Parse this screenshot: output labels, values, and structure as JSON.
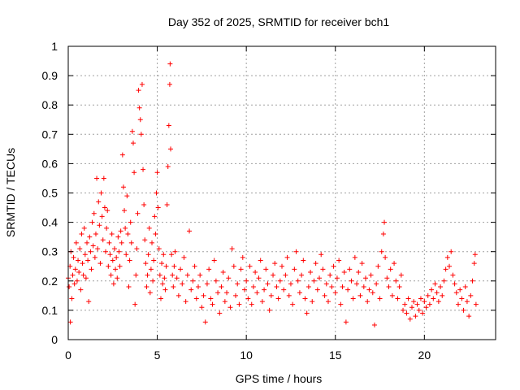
{
  "chart_data": {
    "type": "scatter",
    "title": "Day 352 of 2025, SRMTID for receiver bch1",
    "xlabel": "GPS time / hours",
    "ylabel": "SRMTID / TECUs",
    "xlim": [
      0,
      24
    ],
    "ylim": [
      0,
      1
    ],
    "x_ticks": [
      0,
      5,
      10,
      15,
      20
    ],
    "x_tick_labels": [
      "0",
      "5",
      "10",
      "15",
      "20"
    ],
    "y_ticks": [
      0,
      0.1,
      0.2,
      0.3,
      0.4,
      0.5,
      0.6,
      0.7,
      0.8,
      0.9,
      1
    ],
    "y_tick_labels": [
      "0",
      "0.1",
      "0.2",
      "0.3",
      "0.4",
      "0.5",
      "0.6",
      "0.7",
      "0.8",
      "0.9",
      "1"
    ],
    "grid": true,
    "marker": "+",
    "series": [
      {
        "name": "SRMTID",
        "color": "#ff0000",
        "points": [
          [
            0.0,
            0.21
          ],
          [
            0.05,
            0.18
          ],
          [
            0.1,
            0.25
          ],
          [
            0.12,
            0.06
          ],
          [
            0.15,
            0.3
          ],
          [
            0.2,
            0.14
          ],
          [
            0.25,
            0.22
          ],
          [
            0.3,
            0.28
          ],
          [
            0.35,
            0.19
          ],
          [
            0.4,
            0.24
          ],
          [
            0.45,
            0.33
          ],
          [
            0.5,
            0.2
          ],
          [
            0.55,
            0.27
          ],
          [
            0.6,
            0.23
          ],
          [
            0.65,
            0.31
          ],
          [
            0.7,
            0.17
          ],
          [
            0.75,
            0.36
          ],
          [
            0.8,
            0.26
          ],
          [
            0.85,
            0.22
          ],
          [
            0.9,
            0.38
          ],
          [
            0.95,
            0.29
          ],
          [
            1.0,
            0.21
          ],
          [
            1.05,
            0.33
          ],
          [
            1.1,
            0.27
          ],
          [
            1.15,
            0.13
          ],
          [
            1.2,
            0.35
          ],
          [
            1.25,
            0.3
          ],
          [
            1.3,
            0.24
          ],
          [
            1.35,
            0.4
          ],
          [
            1.4,
            0.32
          ],
          [
            1.45,
            0.43
          ],
          [
            1.5,
            0.28
          ],
          [
            1.55,
            0.36
          ],
          [
            1.6,
            0.55
          ],
          [
            1.65,
            0.31
          ],
          [
            1.7,
            0.47
          ],
          [
            1.75,
            0.39
          ],
          [
            1.8,
            0.26
          ],
          [
            1.85,
            0.5
          ],
          [
            1.9,
            0.42
          ],
          [
            1.95,
            0.34
          ],
          [
            2.0,
            0.55
          ],
          [
            2.05,
            0.45
          ],
          [
            2.1,
            0.3
          ],
          [
            2.15,
            0.38
          ],
          [
            2.2,
            0.44
          ],
          [
            2.25,
            0.25
          ],
          [
            2.3,
            0.33
          ],
          [
            2.35,
            0.29
          ],
          [
            2.4,
            0.22
          ],
          [
            2.45,
            0.36
          ],
          [
            2.5,
            0.27
          ],
          [
            2.55,
            0.19
          ],
          [
            2.6,
            0.31
          ],
          [
            2.65,
            0.24
          ],
          [
            2.7,
            0.28
          ],
          [
            2.75,
            0.21
          ],
          [
            2.8,
            0.35
          ],
          [
            2.85,
            0.3
          ],
          [
            2.9,
            0.25
          ],
          [
            2.95,
            0.37
          ],
          [
            3.0,
            0.33
          ],
          [
            3.05,
            0.63
          ],
          [
            3.1,
            0.52
          ],
          [
            3.15,
            0.44
          ],
          [
            3.2,
            0.38
          ],
          [
            3.25,
            0.29
          ],
          [
            3.3,
            0.49
          ],
          [
            3.35,
            0.36
          ],
          [
            3.4,
            0.18
          ],
          [
            3.45,
            0.27
          ],
          [
            3.5,
            0.4
          ],
          [
            3.55,
            0.33
          ],
          [
            3.6,
            0.71
          ],
          [
            3.65,
            0.67
          ],
          [
            3.7,
            0.57
          ],
          [
            3.75,
            0.12
          ],
          [
            3.8,
            0.22
          ],
          [
            3.85,
            0.31
          ],
          [
            3.9,
            0.43
          ],
          [
            3.95,
            0.85
          ],
          [
            4.0,
            0.79
          ],
          [
            4.05,
            0.75
          ],
          [
            4.1,
            0.7
          ],
          [
            4.15,
            0.87
          ],
          [
            4.2,
            0.58
          ],
          [
            4.25,
            0.46
          ],
          [
            4.3,
            0.34
          ],
          [
            4.35,
            0.26
          ],
          [
            4.4,
            0.18
          ],
          [
            4.45,
            0.22
          ],
          [
            4.5,
            0.29
          ],
          [
            4.55,
            0.38
          ],
          [
            4.6,
            0.16
          ],
          [
            4.65,
            0.24
          ],
          [
            4.7,
            0.33
          ],
          [
            4.75,
            0.2
          ],
          [
            4.8,
            0.27
          ],
          [
            4.85,
            0.42
          ],
          [
            4.9,
            0.36
          ],
          [
            4.95,
            0.5
          ],
          [
            5.0,
            0.57
          ],
          [
            5.05,
            0.45
          ],
          [
            5.1,
            0.31
          ],
          [
            5.15,
            0.22
          ],
          [
            5.2,
            0.14
          ],
          [
            5.25,
            0.26
          ],
          [
            5.3,
            0.19
          ],
          [
            5.35,
            0.29
          ],
          [
            5.4,
            0.21
          ],
          [
            5.45,
            0.17
          ],
          [
            5.5,
            0.25
          ],
          [
            5.55,
            0.46
          ],
          [
            5.6,
            0.59
          ],
          [
            5.65,
            0.73
          ],
          [
            5.7,
            0.87
          ],
          [
            5.72,
            0.94
          ],
          [
            5.75,
            0.65
          ],
          [
            5.8,
            0.29
          ],
          [
            5.85,
            0.22
          ],
          [
            5.9,
            0.18
          ],
          [
            5.95,
            0.25
          ],
          [
            6.0,
            0.3
          ],
          [
            6.1,
            0.21
          ],
          [
            6.2,
            0.15
          ],
          [
            6.3,
            0.24
          ],
          [
            6.4,
            0.19
          ],
          [
            6.5,
            0.28
          ],
          [
            6.6,
            0.13
          ],
          [
            6.7,
            0.22
          ],
          [
            6.8,
            0.37
          ],
          [
            6.9,
            0.17
          ],
          [
            7.0,
            0.2
          ],
          [
            7.1,
            0.25
          ],
          [
            7.2,
            0.14
          ],
          [
            7.3,
            0.18
          ],
          [
            7.4,
            0.22
          ],
          [
            7.5,
            0.11
          ],
          [
            7.6,
            0.15
          ],
          [
            7.7,
            0.06
          ],
          [
            7.8,
            0.19
          ],
          [
            7.9,
            0.24
          ],
          [
            8.0,
            0.14
          ],
          [
            8.1,
            0.12
          ],
          [
            8.2,
            0.27
          ],
          [
            8.3,
            0.2
          ],
          [
            8.4,
            0.16
          ],
          [
            8.5,
            0.09
          ],
          [
            8.6,
            0.18
          ],
          [
            8.7,
            0.23
          ],
          [
            8.8,
            0.13
          ],
          [
            8.9,
            0.16
          ],
          [
            9.0,
            0.21
          ],
          [
            9.1,
            0.11
          ],
          [
            9.2,
            0.31
          ],
          [
            9.3,
            0.25
          ],
          [
            9.4,
            0.15
          ],
          [
            9.5,
            0.19
          ],
          [
            9.6,
            0.12
          ],
          [
            9.7,
            0.24
          ],
          [
            9.8,
            0.28
          ],
          [
            9.9,
            0.17
          ],
          [
            10.0,
            0.2
          ],
          [
            10.1,
            0.14
          ],
          [
            10.2,
            0.25
          ],
          [
            10.3,
            0.12
          ],
          [
            10.4,
            0.18
          ],
          [
            10.5,
            0.23
          ],
          [
            10.6,
            0.16
          ],
          [
            10.7,
            0.21
          ],
          [
            10.8,
            0.27
          ],
          [
            10.9,
            0.13
          ],
          [
            11.0,
            0.17
          ],
          [
            11.1,
            0.24
          ],
          [
            11.2,
            0.19
          ],
          [
            11.3,
            0.1
          ],
          [
            11.4,
            0.15
          ],
          [
            11.5,
            0.22
          ],
          [
            11.6,
            0.26
          ],
          [
            11.7,
            0.18
          ],
          [
            11.8,
            0.14
          ],
          [
            11.9,
            0.2
          ],
          [
            12.0,
            0.25
          ],
          [
            12.1,
            0.17
          ],
          [
            12.2,
            0.22
          ],
          [
            12.3,
            0.28
          ],
          [
            12.4,
            0.15
          ],
          [
            12.5,
            0.19
          ],
          [
            12.6,
            0.12
          ],
          [
            12.7,
            0.24
          ],
          [
            12.8,
            0.3
          ],
          [
            12.9,
            0.2
          ],
          [
            13.0,
            0.16
          ],
          [
            13.1,
            0.22
          ],
          [
            13.2,
            0.27
          ],
          [
            13.3,
            0.14
          ],
          [
            13.4,
            0.09
          ],
          [
            13.5,
            0.18
          ],
          [
            13.6,
            0.23
          ],
          [
            13.7,
            0.13
          ],
          [
            13.8,
            0.2
          ],
          [
            13.9,
            0.26
          ],
          [
            14.0,
            0.17
          ],
          [
            14.1,
            0.21
          ],
          [
            14.2,
            0.29
          ],
          [
            14.3,
            0.24
          ],
          [
            14.4,
            0.15
          ],
          [
            14.5,
            0.19
          ],
          [
            14.6,
            0.13
          ],
          [
            14.7,
            0.22
          ],
          [
            14.8,
            0.18
          ],
          [
            14.9,
            0.25
          ],
          [
            15.0,
            0.16
          ],
          [
            15.1,
            0.21
          ],
          [
            15.2,
            0.27
          ],
          [
            15.3,
            0.12
          ],
          [
            15.4,
            0.18
          ],
          [
            15.5,
            0.23
          ],
          [
            15.6,
            0.06
          ],
          [
            15.7,
            0.17
          ],
          [
            15.8,
            0.24
          ],
          [
            15.9,
            0.2
          ],
          [
            16.0,
            0.14
          ],
          [
            16.1,
            0.28
          ],
          [
            16.2,
            0.19
          ],
          [
            16.3,
            0.23
          ],
          [
            16.4,
            0.15
          ],
          [
            16.5,
            0.26
          ],
          [
            16.6,
            0.18
          ],
          [
            16.7,
            0.21
          ],
          [
            16.8,
            0.13
          ],
          [
            16.9,
            0.17
          ],
          [
            17.0,
            0.22
          ],
          [
            17.1,
            0.16
          ],
          [
            17.2,
            0.05
          ],
          [
            17.3,
            0.19
          ],
          [
            17.4,
            0.25
          ],
          [
            17.5,
            0.14
          ],
          [
            17.6,
            0.3
          ],
          [
            17.7,
            0.36
          ],
          [
            17.75,
            0.4
          ],
          [
            17.8,
            0.28
          ],
          [
            17.9,
            0.21
          ],
          [
            18.0,
            0.18
          ],
          [
            18.1,
            0.24
          ],
          [
            18.2,
            0.15
          ],
          [
            18.3,
            0.26
          ],
          [
            18.4,
            0.2
          ],
          [
            18.5,
            0.14
          ],
          [
            18.6,
            0.18
          ],
          [
            18.7,
            0.22
          ],
          [
            18.8,
            0.1
          ],
          [
            18.9,
            0.12
          ],
          [
            19.0,
            0.09
          ],
          [
            19.1,
            0.14
          ],
          [
            19.2,
            0.07
          ],
          [
            19.3,
            0.11
          ],
          [
            19.4,
            0.13
          ],
          [
            19.5,
            0.08
          ],
          [
            19.6,
            0.12
          ],
          [
            19.7,
            0.1
          ],
          [
            19.8,
            0.14
          ],
          [
            19.9,
            0.09
          ],
          [
            20.0,
            0.13
          ],
          [
            20.1,
            0.11
          ],
          [
            20.2,
            0.15
          ],
          [
            20.3,
            0.12
          ],
          [
            20.4,
            0.17
          ],
          [
            20.5,
            0.14
          ],
          [
            20.6,
            0.19
          ],
          [
            20.7,
            0.16
          ],
          [
            20.8,
            0.13
          ],
          [
            20.9,
            0.18
          ],
          [
            21.0,
            0.15
          ],
          [
            21.1,
            0.2
          ],
          [
            21.2,
            0.24
          ],
          [
            21.3,
            0.28
          ],
          [
            21.4,
            0.25
          ],
          [
            21.5,
            0.3
          ],
          [
            21.6,
            0.22
          ],
          [
            21.7,
            0.19
          ],
          [
            21.8,
            0.16
          ],
          [
            21.9,
            0.12
          ],
          [
            22.0,
            0.17
          ],
          [
            22.1,
            0.14
          ],
          [
            22.2,
            0.1
          ],
          [
            22.3,
            0.18
          ],
          [
            22.4,
            0.13
          ],
          [
            22.5,
            0.08
          ],
          [
            22.6,
            0.15
          ],
          [
            22.7,
            0.2
          ],
          [
            22.8,
            0.26
          ],
          [
            22.85,
            0.29
          ],
          [
            22.9,
            0.12
          ]
        ]
      }
    ]
  }
}
